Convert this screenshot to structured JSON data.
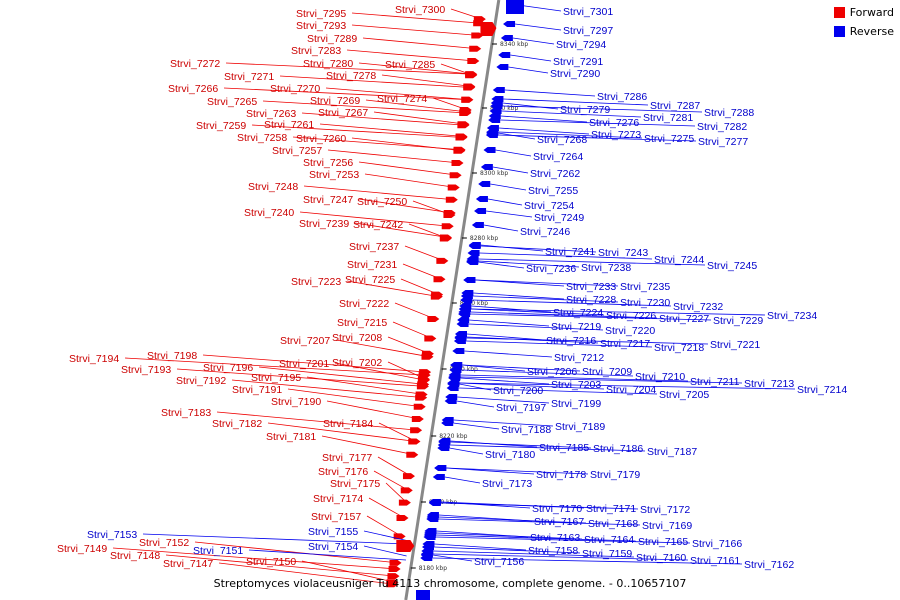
{
  "caption": "Streptomyces violaceusniger Tu 4113 chromosome, complete genome. - 0..10657107",
  "legend": {
    "forward": {
      "label": "Forward",
      "color": "#ee0000"
    },
    "reverse": {
      "label": "Reverse",
      "color": "#0000ee"
    }
  },
  "colors": {
    "forward": "#ee0000",
    "reverse": "#0000ee",
    "axis": "#888888",
    "text_forward": "#cc0000",
    "text_reverse": "#0000cc"
  },
  "ticks": [
    {
      "kbp": 8340,
      "label": "8340 kbp"
    },
    {
      "kbp": 8320,
      "label": "8320 kbp"
    },
    {
      "kbp": 8300,
      "label": "8300 kbp"
    },
    {
      "kbp": 8280,
      "label": "8280 kbp"
    },
    {
      "kbp": 8260,
      "label": "8260 kbp"
    },
    {
      "kbp": 8240,
      "label": "8240 kbp"
    },
    {
      "kbp": 8220,
      "label": "8220 kbp"
    },
    {
      "kbp": 8200,
      "label": "8200 kbp"
    },
    {
      "kbp": 8180,
      "label": "8180 kbp"
    }
  ],
  "forward_genes": [
    "Strvi_7300",
    "Strvi_7295",
    "Strvi_7293",
    "Strvi_7289",
    "Strvi_7283",
    "Strvi_7280",
    "Strvi_7285",
    "Strvi_7278",
    "Strvi_7272",
    "Strvi_7271",
    "Strvi_7270",
    "Strvi_7266",
    "Strvi_7269",
    "Strvi_7274",
    "Strvi_7265",
    "Strvi_7267",
    "Strvi_7263",
    "Strvi_7259",
    "Strvi_7261",
    "Strvi_7258",
    "Strvi_7260",
    "Strvi_7257",
    "Strvi_7256",
    "Strvi_7253",
    "Strvi_7248",
    "Strvi_7247",
    "Strvi_7250",
    "Strvi_7240",
    "Strvi_7239",
    "Strvi_7242",
    "Strvi_7237",
    "Strvi_7231",
    "Strvi_7223",
    "Strvi_7225",
    "Strvi_7222",
    "Strvi_7215",
    "Strvi_7207",
    "Strvi_7208",
    "Strvi_7198",
    "Strvi_7194",
    "Strvi_7201",
    "Strvi_7202",
    "Strvi_7196",
    "Strvi_7193",
    "Strvi_7195",
    "Strvi_7192",
    "Strvi_7191",
    "Strvi_7190",
    "Strvi_7183",
    "Strvi_7184",
    "Strvi_7182",
    "Strvi_7181",
    "Strvi_7177",
    "Strvi_7176",
    "Strvi_7175",
    "Strvi_7174",
    "Strvi_7157",
    "Strvi_7152",
    "Strvi_7149",
    "Strvi_7148",
    "Strvi_7147",
    "Strvi_7150"
  ],
  "reverse_genes": [
    "Strvi_7301",
    "Strvi_7297",
    "Strvi_7294",
    "Strvi_7291",
    "Strvi_7290",
    "Strvi_7286",
    "Strvi_7287",
    "Strvi_7288",
    "Strvi_7279",
    "Strvi_7281",
    "Strvi_7276",
    "Strvi_7282",
    "Strvi_7273",
    "Strvi_7275",
    "Strvi_7277",
    "Strvi_7268",
    "Strvi_7264",
    "Strvi_7262",
    "Strvi_7255",
    "Strvi_7254",
    "Strvi_7249",
    "Strvi_7246",
    "Strvi_7241",
    "Strvi_7243",
    "Strvi_7244",
    "Strvi_7245",
    "Strvi_7236",
    "Strvi_7238",
    "Strvi_7233",
    "Strvi_7235",
    "Strvi_7228",
    "Strvi_7230",
    "Strvi_7232",
    "Strvi_7234",
    "Strvi_7224",
    "Strvi_7226",
    "Strvi_7227",
    "Strvi_7229",
    "Strvi_7219",
    "Strvi_7220",
    "Strvi_7216",
    "Strvi_7217",
    "Strvi_7218",
    "Strvi_7221",
    "Strvi_7212",
    "Strvi_7206",
    "Strvi_7209",
    "Strvi_7210",
    "Strvi_7211",
    "Strvi_7213",
    "Strvi_7203",
    "Strvi_7204",
    "Strvi_7205",
    "Strvi_7214",
    "Strvi_7200",
    "Strvi_7199",
    "Strvi_7197",
    "Strvi_7189",
    "Strvi_7188",
    "Strvi_7185",
    "Strvi_7186",
    "Strvi_7187",
    "Strvi_7180",
    "Strvi_7178",
    "Strvi_7179",
    "Strvi_7173",
    "Strvi_7170",
    "Strvi_7171",
    "Strvi_7172",
    "Strvi_7167",
    "Strvi_7168",
    "Strvi_7169",
    "Strvi_7163",
    "Strvi_7164",
    "Strvi_7165",
    "Strvi_7166",
    "Strvi_7158",
    "Strvi_7159",
    "Strvi_7160",
    "Strvi_7161",
    "Strvi_7162",
    "Strvi_7156",
    "Strvi_7153",
    "Strvi_7155",
    "Strvi_7154",
    "Strvi_7151"
  ]
}
